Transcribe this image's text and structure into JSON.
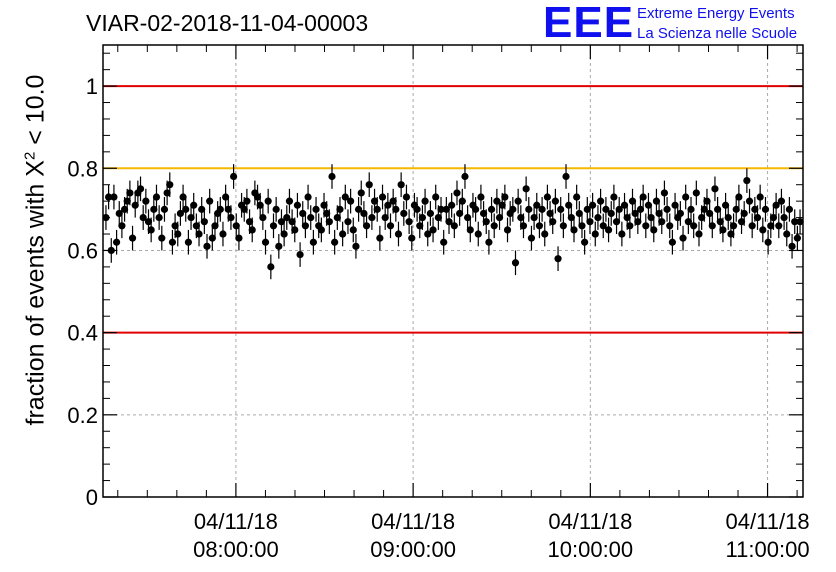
{
  "title": "VIAR-02-2018-11-04-00003",
  "logo": {
    "mark": "EEE",
    "line1": "Extreme Energy Events",
    "line2": "La Scienza nelle Scuole",
    "color": "#1010ee"
  },
  "chart_data": {
    "type": "scatter",
    "title": "VIAR-02-2018-11-04-00003",
    "ylabel_parts": {
      "before": "fraction of events with ",
      "symbol": "X",
      "exponent": "2",
      "after": " < 10.0"
    },
    "xlabel": "",
    "ylim": [
      0,
      1.1
    ],
    "yticks": [
      0,
      0.2,
      0.4,
      0.6,
      0.8,
      1
    ],
    "ytick_labels": [
      "0",
      "0.2",
      "0.4",
      "0.6",
      "0.8",
      "1"
    ],
    "xlim": [
      "2018-11-04 07:15:00",
      "2018-11-04 11:12:00"
    ],
    "xticks": [
      {
        "time": "2018-11-04 08:00:00",
        "date_label": "04/11/18",
        "time_label": "08:00:00"
      },
      {
        "time": "2018-11-04 09:00:00",
        "date_label": "04/11/18",
        "time_label": "09:00:00"
      },
      {
        "time": "2018-11-04 10:00:00",
        "date_label": "04/11/18",
        "time_label": "10:00:00"
      },
      {
        "time": "2018-11-04 11:00:00",
        "date_label": "04/11/18",
        "time_label": "11:00:00"
      }
    ],
    "grid": true,
    "reference_lines": [
      {
        "y": 1.0,
        "color": "#e00000"
      },
      {
        "y": 0.8,
        "color": "#f5b800"
      },
      {
        "y": 0.4,
        "color": "#e00000"
      }
    ],
    "series": [
      {
        "error": 0.03,
        "x_start": "2018-11-04 07:16:00",
        "x_end": "2018-11-04 11:11:00",
        "values": [
          0.68,
          0.73,
          0.6,
          0.73,
          0.62,
          0.69,
          0.66,
          0.7,
          0.72,
          0.74,
          0.63,
          0.71,
          0.74,
          0.75,
          0.68,
          0.72,
          0.67,
          0.65,
          0.7,
          0.73,
          0.68,
          0.63,
          0.7,
          0.74,
          0.76,
          0.62,
          0.66,
          0.64,
          0.69,
          0.73,
          0.7,
          0.62,
          0.68,
          0.71,
          0.66,
          0.64,
          0.7,
          0.67,
          0.61,
          0.72,
          0.63,
          0.66,
          0.69,
          0.7,
          0.64,
          0.73,
          0.7,
          0.68,
          0.78,
          0.66,
          0.63,
          0.71,
          0.7,
          0.72,
          0.67,
          0.65,
          0.74,
          0.73,
          0.71,
          0.68,
          0.62,
          0.72,
          0.56,
          0.66,
          0.7,
          0.61,
          0.67,
          0.64,
          0.68,
          0.72,
          0.67,
          0.65,
          0.71,
          0.59,
          0.69,
          0.66,
          0.73,
          0.68,
          0.62,
          0.7,
          0.66,
          0.65,
          0.71,
          0.69,
          0.67,
          0.78,
          0.62,
          0.68,
          0.7,
          0.64,
          0.73,
          0.67,
          0.72,
          0.65,
          0.61,
          0.7,
          0.74,
          0.69,
          0.66,
          0.76,
          0.68,
          0.72,
          0.7,
          0.63,
          0.73,
          0.68,
          0.71,
          0.66,
          0.72,
          0.7,
          0.64,
          0.76,
          0.69,
          0.73,
          0.67,
          0.63,
          0.71,
          0.7,
          0.66,
          0.68,
          0.72,
          0.64,
          0.69,
          0.65,
          0.73,
          0.68,
          0.7,
          0.62,
          0.7,
          0.67,
          0.71,
          0.66,
          0.74,
          0.69,
          0.72,
          0.78,
          0.68,
          0.65,
          0.71,
          0.7,
          0.64,
          0.73,
          0.69,
          0.67,
          0.62,
          0.7,
          0.66,
          0.72,
          0.68,
          0.71,
          0.73,
          0.65,
          0.69,
          0.7,
          0.57,
          0.72,
          0.68,
          0.66,
          0.75,
          0.7,
          0.63,
          0.68,
          0.71,
          0.66,
          0.7,
          0.64,
          0.73,
          0.69,
          0.67,
          0.72,
          0.58,
          0.7,
          0.66,
          0.78,
          0.71,
          0.68,
          0.65,
          0.73,
          0.69,
          0.66,
          0.62,
          0.7,
          0.67,
          0.71,
          0.64,
          0.68,
          0.72,
          0.66,
          0.7,
          0.65,
          0.69,
          0.73,
          0.67,
          0.7,
          0.64,
          0.71,
          0.68,
          0.66,
          0.72,
          0.69,
          0.67,
          0.7,
          0.73,
          0.66,
          0.71,
          0.68,
          0.65,
          0.72,
          0.69,
          0.67,
          0.74,
          0.7,
          0.66,
          0.62,
          0.71,
          0.68,
          0.69,
          0.63,
          0.73,
          0.67,
          0.7,
          0.66,
          0.74,
          0.64,
          0.68,
          0.7,
          0.72,
          0.69,
          0.66,
          0.75,
          0.7,
          0.67,
          0.65,
          0.71,
          0.68,
          0.64,
          0.66,
          0.7,
          0.73,
          0.67,
          0.69,
          0.77,
          0.72,
          0.66,
          0.7,
          0.68,
          0.73,
          0.65,
          0.7,
          0.62,
          0.66,
          0.68,
          0.71,
          0.66,
          0.72,
          0.68,
          0.64,
          0.7,
          0.61,
          0.67,
          0.63,
          0.67
        ]
      }
    ]
  }
}
